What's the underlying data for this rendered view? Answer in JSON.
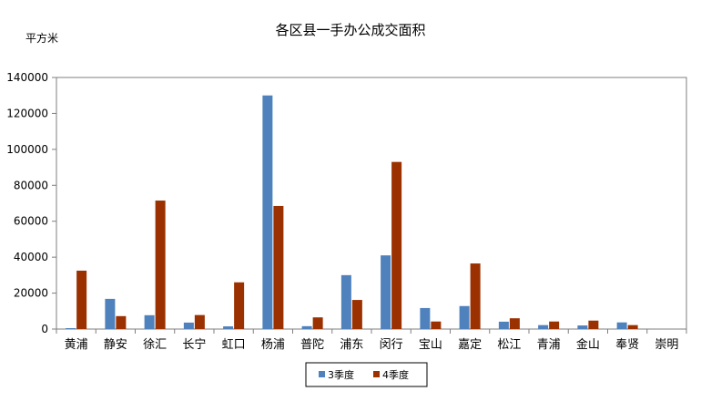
{
  "chart_data": {
    "type": "bar",
    "title": "各区县一手办公成交面积",
    "ylabel": "平方米",
    "xlabel": "",
    "ylim": [
      0,
      140000
    ],
    "yticks": [
      0,
      20000,
      40000,
      60000,
      80000,
      100000,
      120000,
      140000
    ],
    "grid": false,
    "legend_position": "bottom",
    "categories": [
      "黄浦",
      "静安",
      "徐汇",
      "长宁",
      "虹口",
      "杨浦",
      "普陀",
      "浦东",
      "闵行",
      "宝山",
      "嘉定",
      "松江",
      "青浦",
      "金山",
      "奉贤",
      "崇明"
    ],
    "series": [
      {
        "name": "3季度",
        "color": "#4f81bd",
        "values": [
          500,
          16800,
          7700,
          3600,
          1500,
          130000,
          1600,
          30000,
          41000,
          11700,
          12800,
          4100,
          2200,
          2000,
          3700,
          0
        ]
      },
      {
        "name": "4季度",
        "color": "#9b3100",
        "values": [
          32500,
          7200,
          71500,
          7800,
          26000,
          68500,
          6500,
          16200,
          93000,
          4200,
          36500,
          6000,
          4200,
          4700,
          2200,
          0
        ]
      }
    ]
  }
}
